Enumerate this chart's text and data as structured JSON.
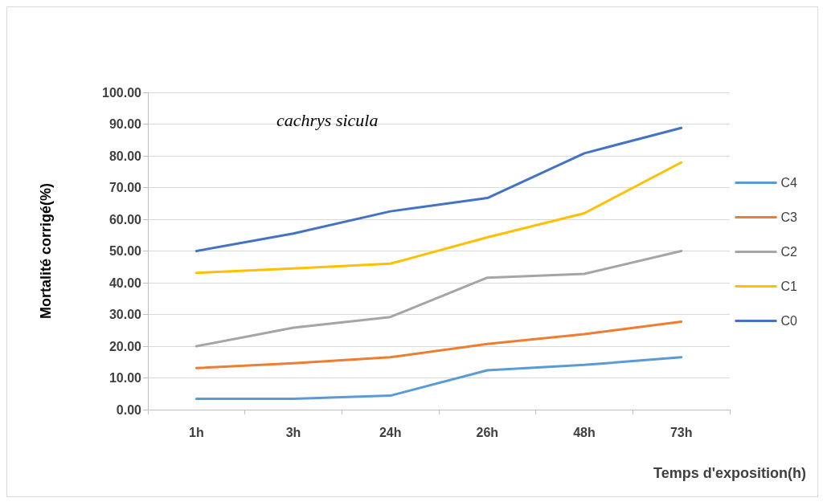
{
  "chart_data": {
    "type": "line",
    "title": "cachrys sicula",
    "xlabel": "Temps d'exposition(h)",
    "ylabel": "Mortalité corrigé(%)",
    "categories": [
      "1h",
      "3h",
      "24h",
      "26h",
      "48h",
      "73h"
    ],
    "series": [
      {
        "name": "C4",
        "color": "#5b9bd5",
        "values": [
          3.4,
          3.4,
          4.4,
          12.4,
          14.1,
          16.5
        ]
      },
      {
        "name": "C3",
        "color": "#ed7d31",
        "values": [
          13.1,
          14.6,
          16.5,
          20.7,
          23.8,
          27.7
        ]
      },
      {
        "name": "C2",
        "color": "#a5a5a5",
        "values": [
          20,
          25.8,
          29.2,
          41.6,
          42.8,
          50
        ]
      },
      {
        "name": "C1",
        "color": "#ffc000",
        "values": [
          43.1,
          44.5,
          46,
          54.3,
          61.9,
          77.9
        ]
      },
      {
        "name": "C0",
        "color": "#4472c4",
        "values": [
          50,
          55.5,
          62.5,
          66.7,
          80.8,
          88.8
        ]
      }
    ],
    "ylim": [
      0,
      100
    ],
    "yticks": [
      {
        "value": 0,
        "label": "0.00"
      },
      {
        "value": 10,
        "label": "10.00"
      },
      {
        "value": 20,
        "label": "20.00"
      },
      {
        "value": 30,
        "label": "30.00"
      },
      {
        "value": 40,
        "label": "40.00"
      },
      {
        "value": 50,
        "label": "50.00"
      },
      {
        "value": 60,
        "label": "60.00"
      },
      {
        "value": 70,
        "label": "70.00"
      },
      {
        "value": 80,
        "label": "80.00"
      },
      {
        "value": 90,
        "label": "90.00"
      },
      {
        "value": 100,
        "label": "100.00"
      }
    ],
    "grid": "y",
    "legend": "right",
    "marker": "none",
    "line_style": "solid"
  }
}
